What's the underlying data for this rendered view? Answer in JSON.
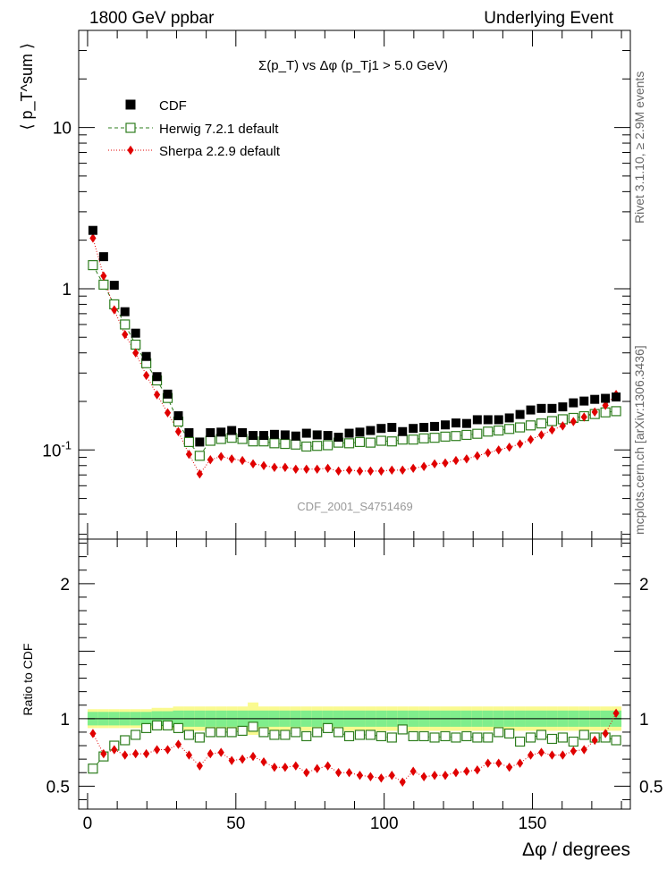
{
  "header": {
    "left": "1800 GeV ppbar",
    "right": "Underlying Event"
  },
  "side_labels": {
    "rivet": "Rivet 3.1.10, ≥ 2.9M events",
    "mcplots": "mcplots.cern.ch [arXiv:1306.3436]"
  },
  "watermark": "CDF_2001_S4751469",
  "colors": {
    "data": "#000000",
    "herwig": "#2e7d1e",
    "sherpa": "#e00000",
    "band_inner": "#80ee8c",
    "band_outer": "#fafa90"
  },
  "chart_data": [
    {
      "type": "scatter",
      "title": "Σ(p_T) vs Δφ (p_Tj1 > 5.0 GeV)",
      "ylabel": "⟨ p_T^sum ⟩",
      "xlabel": "Δφ / degrees",
      "yscale": "log",
      "xlim": [
        -3,
        183
      ],
      "ylim": [
        0.028,
        40
      ],
      "yticks": [
        0.1,
        1,
        10
      ],
      "ytick_labels": [
        "10^-1",
        "1",
        "10"
      ],
      "xticks": [
        0,
        50,
        100,
        150
      ],
      "legend_position": "top-left",
      "x": [
        1.8,
        5.4,
        9.0,
        12.6,
        16.2,
        19.8,
        23.4,
        27.0,
        30.6,
        34.2,
        37.8,
        41.4,
        45.0,
        48.6,
        52.2,
        55.8,
        59.4,
        63.0,
        66.6,
        70.2,
        73.8,
        77.4,
        81.0,
        84.6,
        88.2,
        91.8,
        95.4,
        99.0,
        102.6,
        106.2,
        109.8,
        113.4,
        117.0,
        120.6,
        124.2,
        127.8,
        131.4,
        135.0,
        138.6,
        142.2,
        145.8,
        149.4,
        153.0,
        156.6,
        160.2,
        163.8,
        167.4,
        171.0,
        174.6,
        178.2
      ],
      "series": [
        {
          "name": "CDF",
          "marker": "filled-square",
          "values": [
            2.3,
            1.58,
            1.05,
            0.72,
            0.53,
            0.38,
            0.285,
            0.222,
            0.163,
            0.128,
            0.112,
            0.128,
            0.129,
            0.132,
            0.128,
            0.123,
            0.123,
            0.125,
            0.124,
            0.122,
            0.127,
            0.124,
            0.123,
            0.12,
            0.127,
            0.129,
            0.132,
            0.136,
            0.138,
            0.13,
            0.136,
            0.138,
            0.14,
            0.143,
            0.147,
            0.146,
            0.154,
            0.154,
            0.154,
            0.158,
            0.166,
            0.177,
            0.181,
            0.181,
            0.185,
            0.196,
            0.201,
            0.206,
            0.209,
            0.213
          ]
        },
        {
          "name": "Herwig 7.2.1 default",
          "marker": "open-square",
          "line": "dashed",
          "values": [
            1.4,
            1.06,
            0.8,
            0.6,
            0.45,
            0.345,
            0.27,
            0.21,
            0.15,
            0.112,
            0.092,
            0.114,
            0.117,
            0.119,
            0.117,
            0.113,
            0.113,
            0.11,
            0.109,
            0.108,
            0.105,
            0.106,
            0.107,
            0.111,
            0.11,
            0.112,
            0.111,
            0.114,
            0.113,
            0.116,
            0.116,
            0.118,
            0.119,
            0.121,
            0.122,
            0.124,
            0.126,
            0.13,
            0.132,
            0.135,
            0.138,
            0.142,
            0.146,
            0.151,
            0.155,
            0.158,
            0.162,
            0.167,
            0.171,
            0.174
          ]
        },
        {
          "name": "Sherpa 2.2.9 default",
          "marker": "filled-diamond",
          "line": "dotted",
          "values": [
            2.06,
            1.2,
            0.74,
            0.52,
            0.4,
            0.29,
            0.22,
            0.17,
            0.13,
            0.094,
            0.071,
            0.087,
            0.091,
            0.088,
            0.086,
            0.082,
            0.08,
            0.078,
            0.078,
            0.076,
            0.076,
            0.076,
            0.077,
            0.074,
            0.075,
            0.074,
            0.074,
            0.074,
            0.075,
            0.075,
            0.077,
            0.079,
            0.082,
            0.083,
            0.086,
            0.088,
            0.092,
            0.096,
            0.1,
            0.104,
            0.109,
            0.116,
            0.124,
            0.133,
            0.141,
            0.15,
            0.16,
            0.172,
            0.189,
            0.221
          ]
        }
      ]
    },
    {
      "type": "scatter",
      "ylabel": "Ratio to CDF",
      "xlabel": "Δφ / degrees",
      "xlim": [
        -3,
        183
      ],
      "ylim": [
        0.33,
        2.33
      ],
      "yticks": [
        0.5,
        1,
        2
      ],
      "ytick_labels": [
        "0.5",
        "1",
        "2"
      ],
      "xticks": [
        0,
        50,
        100,
        150
      ],
      "band_inner": [
        0.05,
        0.05,
        0.05,
        0.05,
        0.05,
        0.05,
        0.055,
        0.055,
        0.06,
        0.06,
        0.06,
        0.06,
        0.06,
        0.06,
        0.06,
        0.06,
        0.06,
        0.06,
        0.06,
        0.06,
        0.06,
        0.06,
        0.06,
        0.06,
        0.06,
        0.06,
        0.06,
        0.06,
        0.06,
        0.06,
        0.06,
        0.06,
        0.06,
        0.06,
        0.06,
        0.06,
        0.06,
        0.06,
        0.06,
        0.06,
        0.06,
        0.06,
        0.06,
        0.06,
        0.06,
        0.06,
        0.06,
        0.06,
        0.06,
        0.06
      ],
      "band_outer": [
        0.07,
        0.07,
        0.07,
        0.07,
        0.07,
        0.07,
        0.08,
        0.08,
        0.09,
        0.09,
        0.09,
        0.09,
        0.09,
        0.09,
        0.09,
        0.12,
        0.09,
        0.09,
        0.09,
        0.09,
        0.09,
        0.09,
        0.09,
        0.09,
        0.09,
        0.09,
        0.09,
        0.09,
        0.09,
        0.09,
        0.09,
        0.09,
        0.09,
        0.09,
        0.09,
        0.09,
        0.09,
        0.09,
        0.09,
        0.09,
        0.09,
        0.09,
        0.09,
        0.09,
        0.09,
        0.09,
        0.09,
        0.09,
        0.09,
        0.09
      ],
      "series": [
        {
          "name": "Herwig 7.2.1 default",
          "values": [
            0.63,
            0.72,
            0.8,
            0.84,
            0.88,
            0.93,
            0.95,
            0.95,
            0.93,
            0.88,
            0.86,
            0.9,
            0.9,
            0.9,
            0.91,
            0.94,
            0.9,
            0.88,
            0.88,
            0.9,
            0.87,
            0.9,
            0.93,
            0.9,
            0.87,
            0.88,
            0.88,
            0.87,
            0.86,
            0.92,
            0.87,
            0.87,
            0.86,
            0.87,
            0.86,
            0.87,
            0.86,
            0.86,
            0.9,
            0.89,
            0.83,
            0.86,
            0.88,
            0.85,
            0.86,
            0.83,
            0.88,
            0.86,
            0.86,
            0.84
          ]
        },
        {
          "name": "Sherpa 2.2.9 default",
          "values": [
            0.89,
            0.74,
            0.77,
            0.73,
            0.74,
            0.74,
            0.77,
            0.77,
            0.81,
            0.73,
            0.65,
            0.74,
            0.75,
            0.69,
            0.7,
            0.72,
            0.68,
            0.64,
            0.64,
            0.65,
            0.6,
            0.63,
            0.65,
            0.6,
            0.6,
            0.58,
            0.57,
            0.56,
            0.58,
            0.53,
            0.61,
            0.57,
            0.58,
            0.58,
            0.6,
            0.61,
            0.62,
            0.67,
            0.67,
            0.64,
            0.67,
            0.73,
            0.75,
            0.73,
            0.73,
            0.76,
            0.77,
            0.84,
            0.89,
            1.04
          ]
        }
      ]
    }
  ]
}
